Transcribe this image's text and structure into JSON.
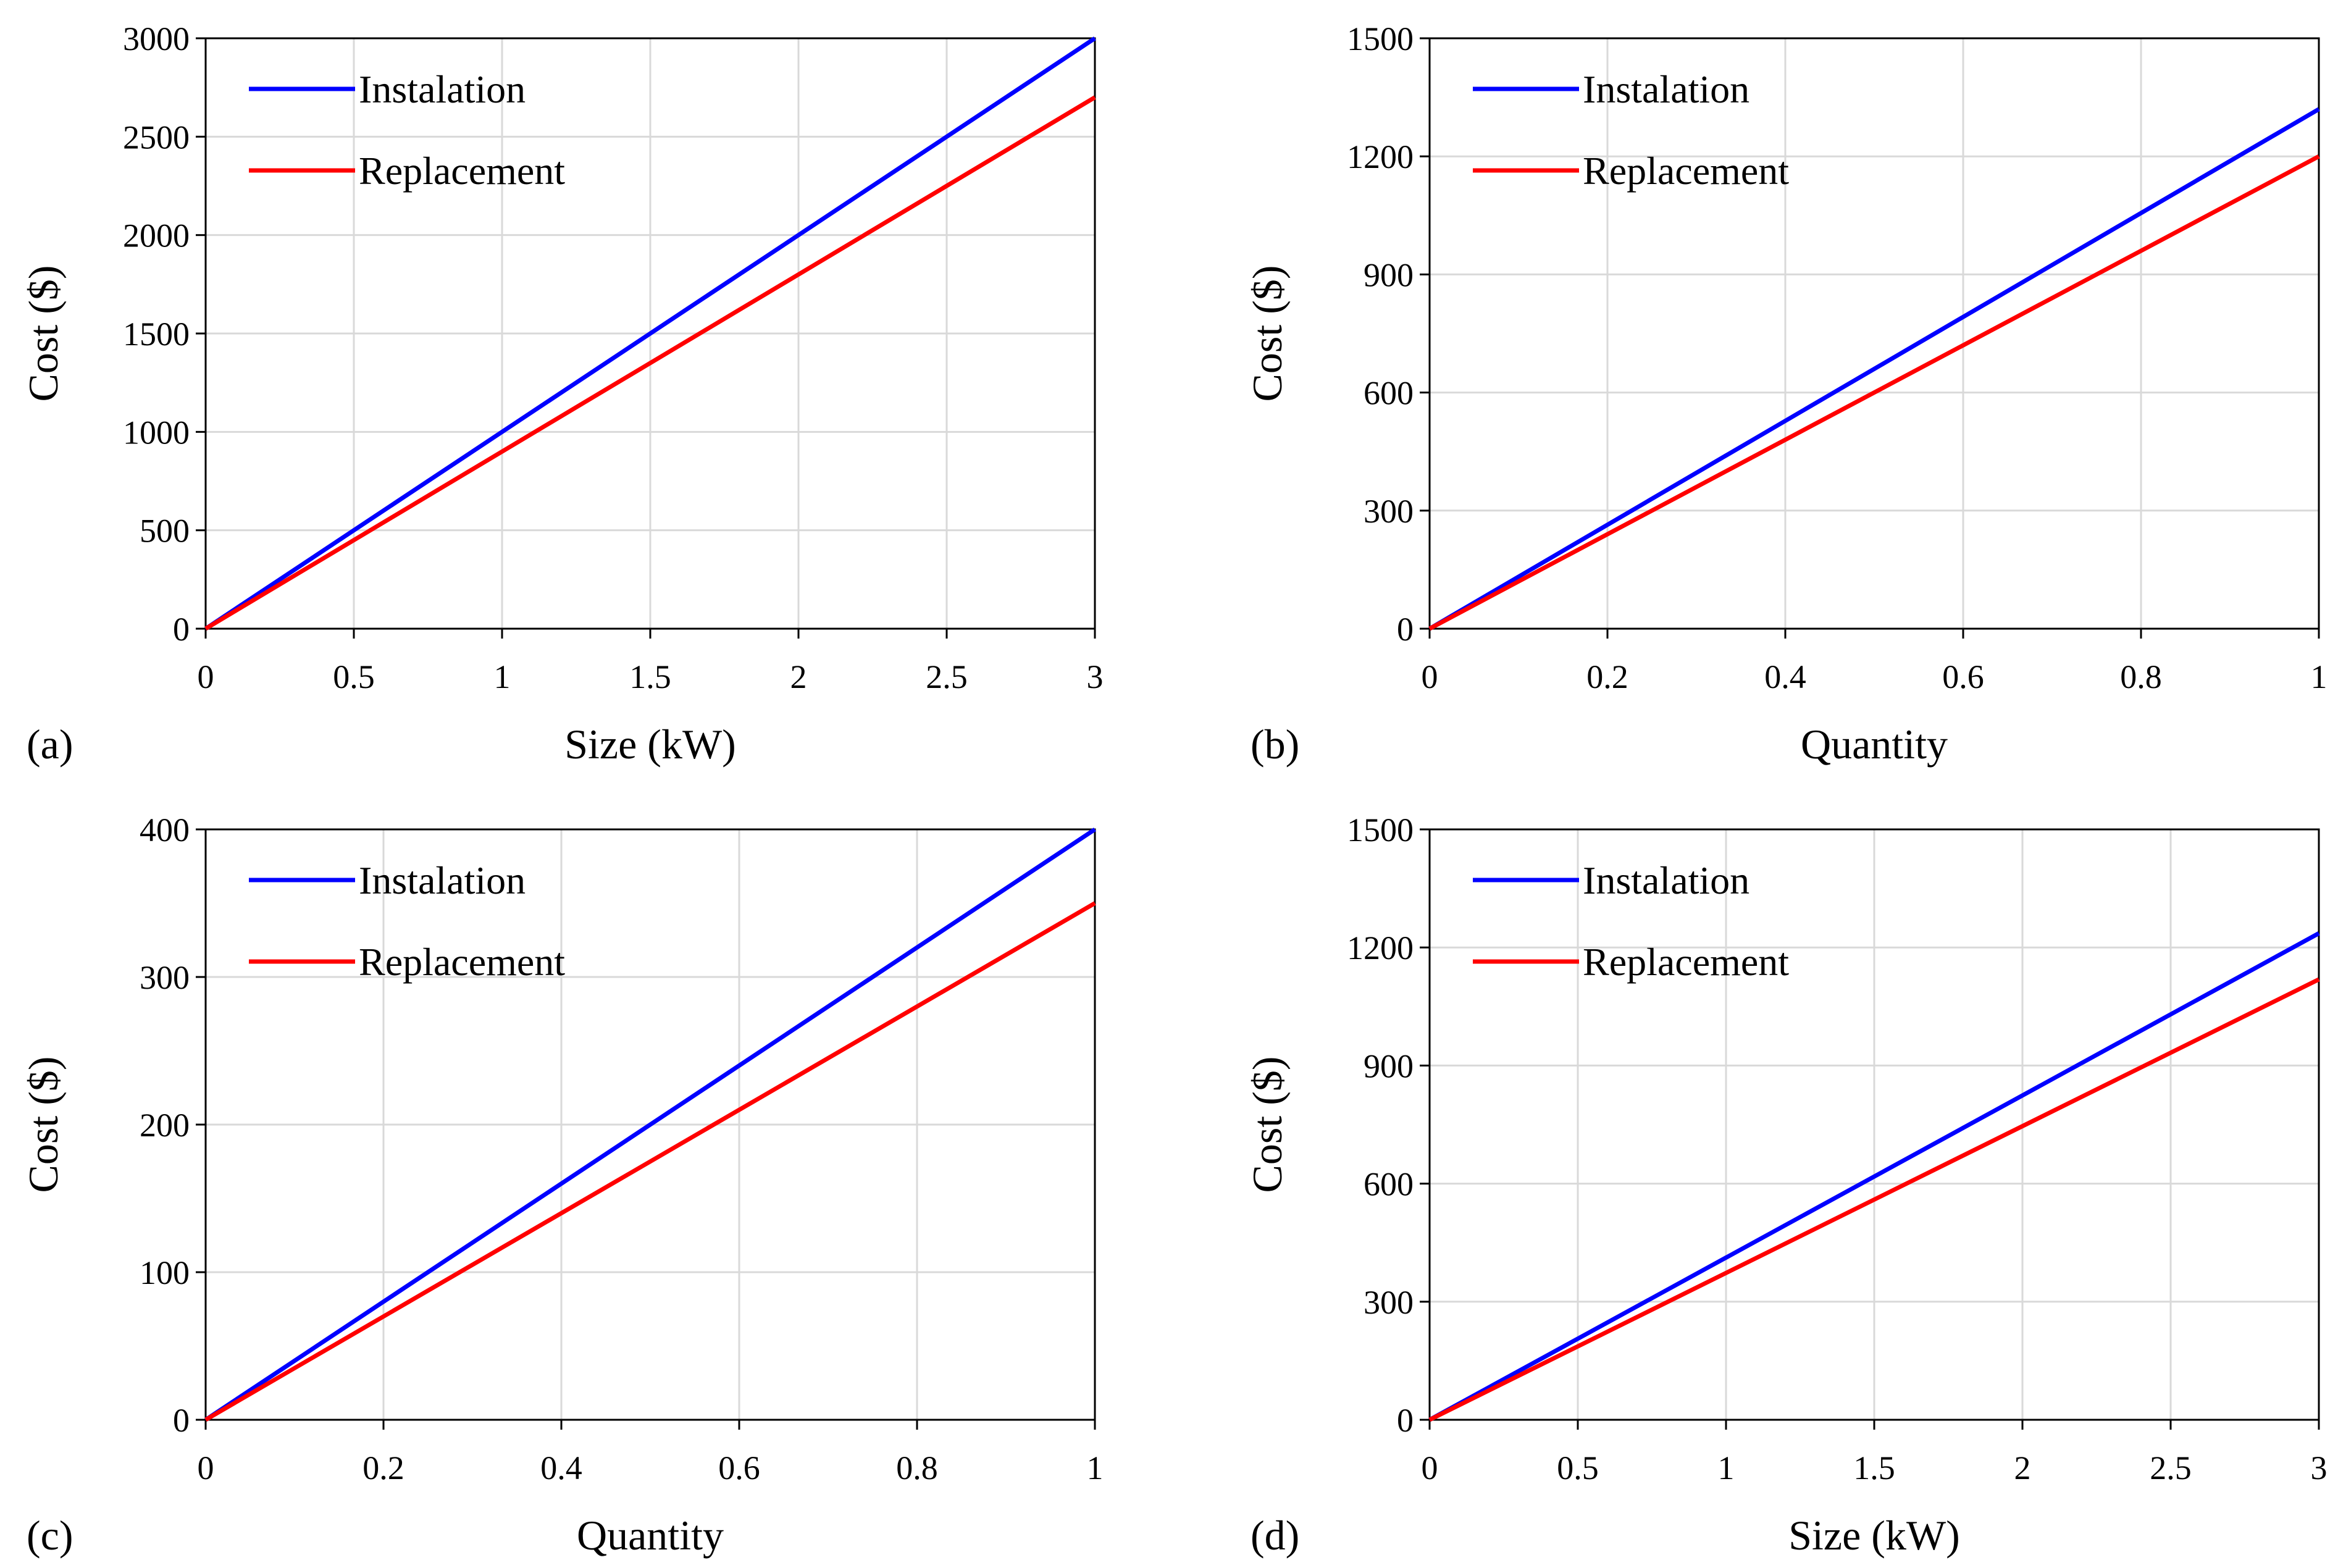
{
  "chart_data": [
    {
      "type": "line",
      "panel_label": "(a)",
      "title": "",
      "xlabel": "Size (kW)",
      "ylabel": "Cost ($)",
      "xlim": [
        0,
        3
      ],
      "ylim": [
        0,
        3000
      ],
      "xticks": [
        0,
        0.5,
        1,
        1.5,
        2,
        2.5,
        3
      ],
      "yticks": [
        0,
        500,
        1000,
        1500,
        2000,
        2500,
        3000
      ],
      "xtick_labels": [
        "0",
        "0.5",
        "1",
        "1.5",
        "2",
        "2.5",
        "3"
      ],
      "ytick_labels": [
        "0",
        "500",
        "1000",
        "1500",
        "2000",
        "2500",
        "3000"
      ],
      "grid": true,
      "legend_position": "top-left",
      "series": [
        {
          "name": "Instalation",
          "color": "#0000ff",
          "x": [
            0,
            3
          ],
          "y": [
            0,
            3000
          ]
        },
        {
          "name": "Replacement",
          "color": "#ff0000",
          "x": [
            0,
            3
          ],
          "y": [
            0,
            2700
          ]
        }
      ]
    },
    {
      "type": "line",
      "panel_label": "(b)",
      "title": "",
      "xlabel": "Quantity",
      "ylabel": "Cost ($)",
      "xlim": [
        0,
        1
      ],
      "ylim": [
        0,
        1500
      ],
      "xticks": [
        0,
        0.2,
        0.4,
        0.6,
        0.8,
        1
      ],
      "yticks": [
        0,
        300,
        600,
        900,
        1200,
        1500
      ],
      "xtick_labels": [
        "0",
        "0.2",
        "0.4",
        "0.6",
        "0.8",
        "1"
      ],
      "ytick_labels": [
        "0",
        "300",
        "600",
        "900",
        "1200",
        "1500"
      ],
      "grid": true,
      "legend_position": "top-left",
      "series": [
        {
          "name": "Instalation",
          "color": "#0000ff",
          "x": [
            0,
            1
          ],
          "y": [
            0,
            1320
          ]
        },
        {
          "name": "Replacement",
          "color": "#ff0000",
          "x": [
            0,
            1
          ],
          "y": [
            0,
            1200
          ]
        }
      ]
    },
    {
      "type": "line",
      "panel_label": "(c)",
      "title": "",
      "xlabel": "Quantity",
      "ylabel": "Cost ($)",
      "xlim": [
        0,
        1
      ],
      "ylim": [
        0,
        400
      ],
      "xticks": [
        0,
        0.2,
        0.4,
        0.6,
        0.8,
        1
      ],
      "yticks": [
        0,
        100,
        200,
        300,
        400
      ],
      "xtick_labels": [
        "0",
        "0.2",
        "0.4",
        "0.6",
        "0.8",
        "1"
      ],
      "ytick_labels": [
        "0",
        "100",
        "200",
        "300",
        "400"
      ],
      "grid": true,
      "legend_position": "top-left",
      "series": [
        {
          "name": "Instalation",
          "color": "#0000ff",
          "x": [
            0,
            1
          ],
          "y": [
            0,
            400
          ]
        },
        {
          "name": "Replacement",
          "color": "#ff0000",
          "x": [
            0,
            1
          ],
          "y": [
            0,
            350
          ]
        }
      ]
    },
    {
      "type": "line",
      "panel_label": "(d)",
      "title": "",
      "xlabel": "Size (kW)",
      "ylabel": "Cost ($)",
      "xlim": [
        0,
        3
      ],
      "ylim": [
        0,
        1500
      ],
      "xticks": [
        0,
        0.5,
        1,
        1.5,
        2,
        2.5,
        3
      ],
      "yticks": [
        0,
        300,
        600,
        900,
        1200,
        1500
      ],
      "xtick_labels": [
        "0",
        "0.5",
        "1",
        "1.5",
        "2",
        "2.5",
        "3"
      ],
      "ytick_labels": [
        "0",
        "300",
        "600",
        "900",
        "1200",
        "1500"
      ],
      "grid": true,
      "legend_position": "top-left",
      "series": [
        {
          "name": "Instalation",
          "color": "#0000ff",
          "x": [
            0,
            3
          ],
          "y": [
            0,
            1236
          ]
        },
        {
          "name": "Replacement",
          "color": "#ff0000",
          "x": [
            0,
            3
          ],
          "y": [
            0,
            1119
          ]
        }
      ]
    }
  ]
}
